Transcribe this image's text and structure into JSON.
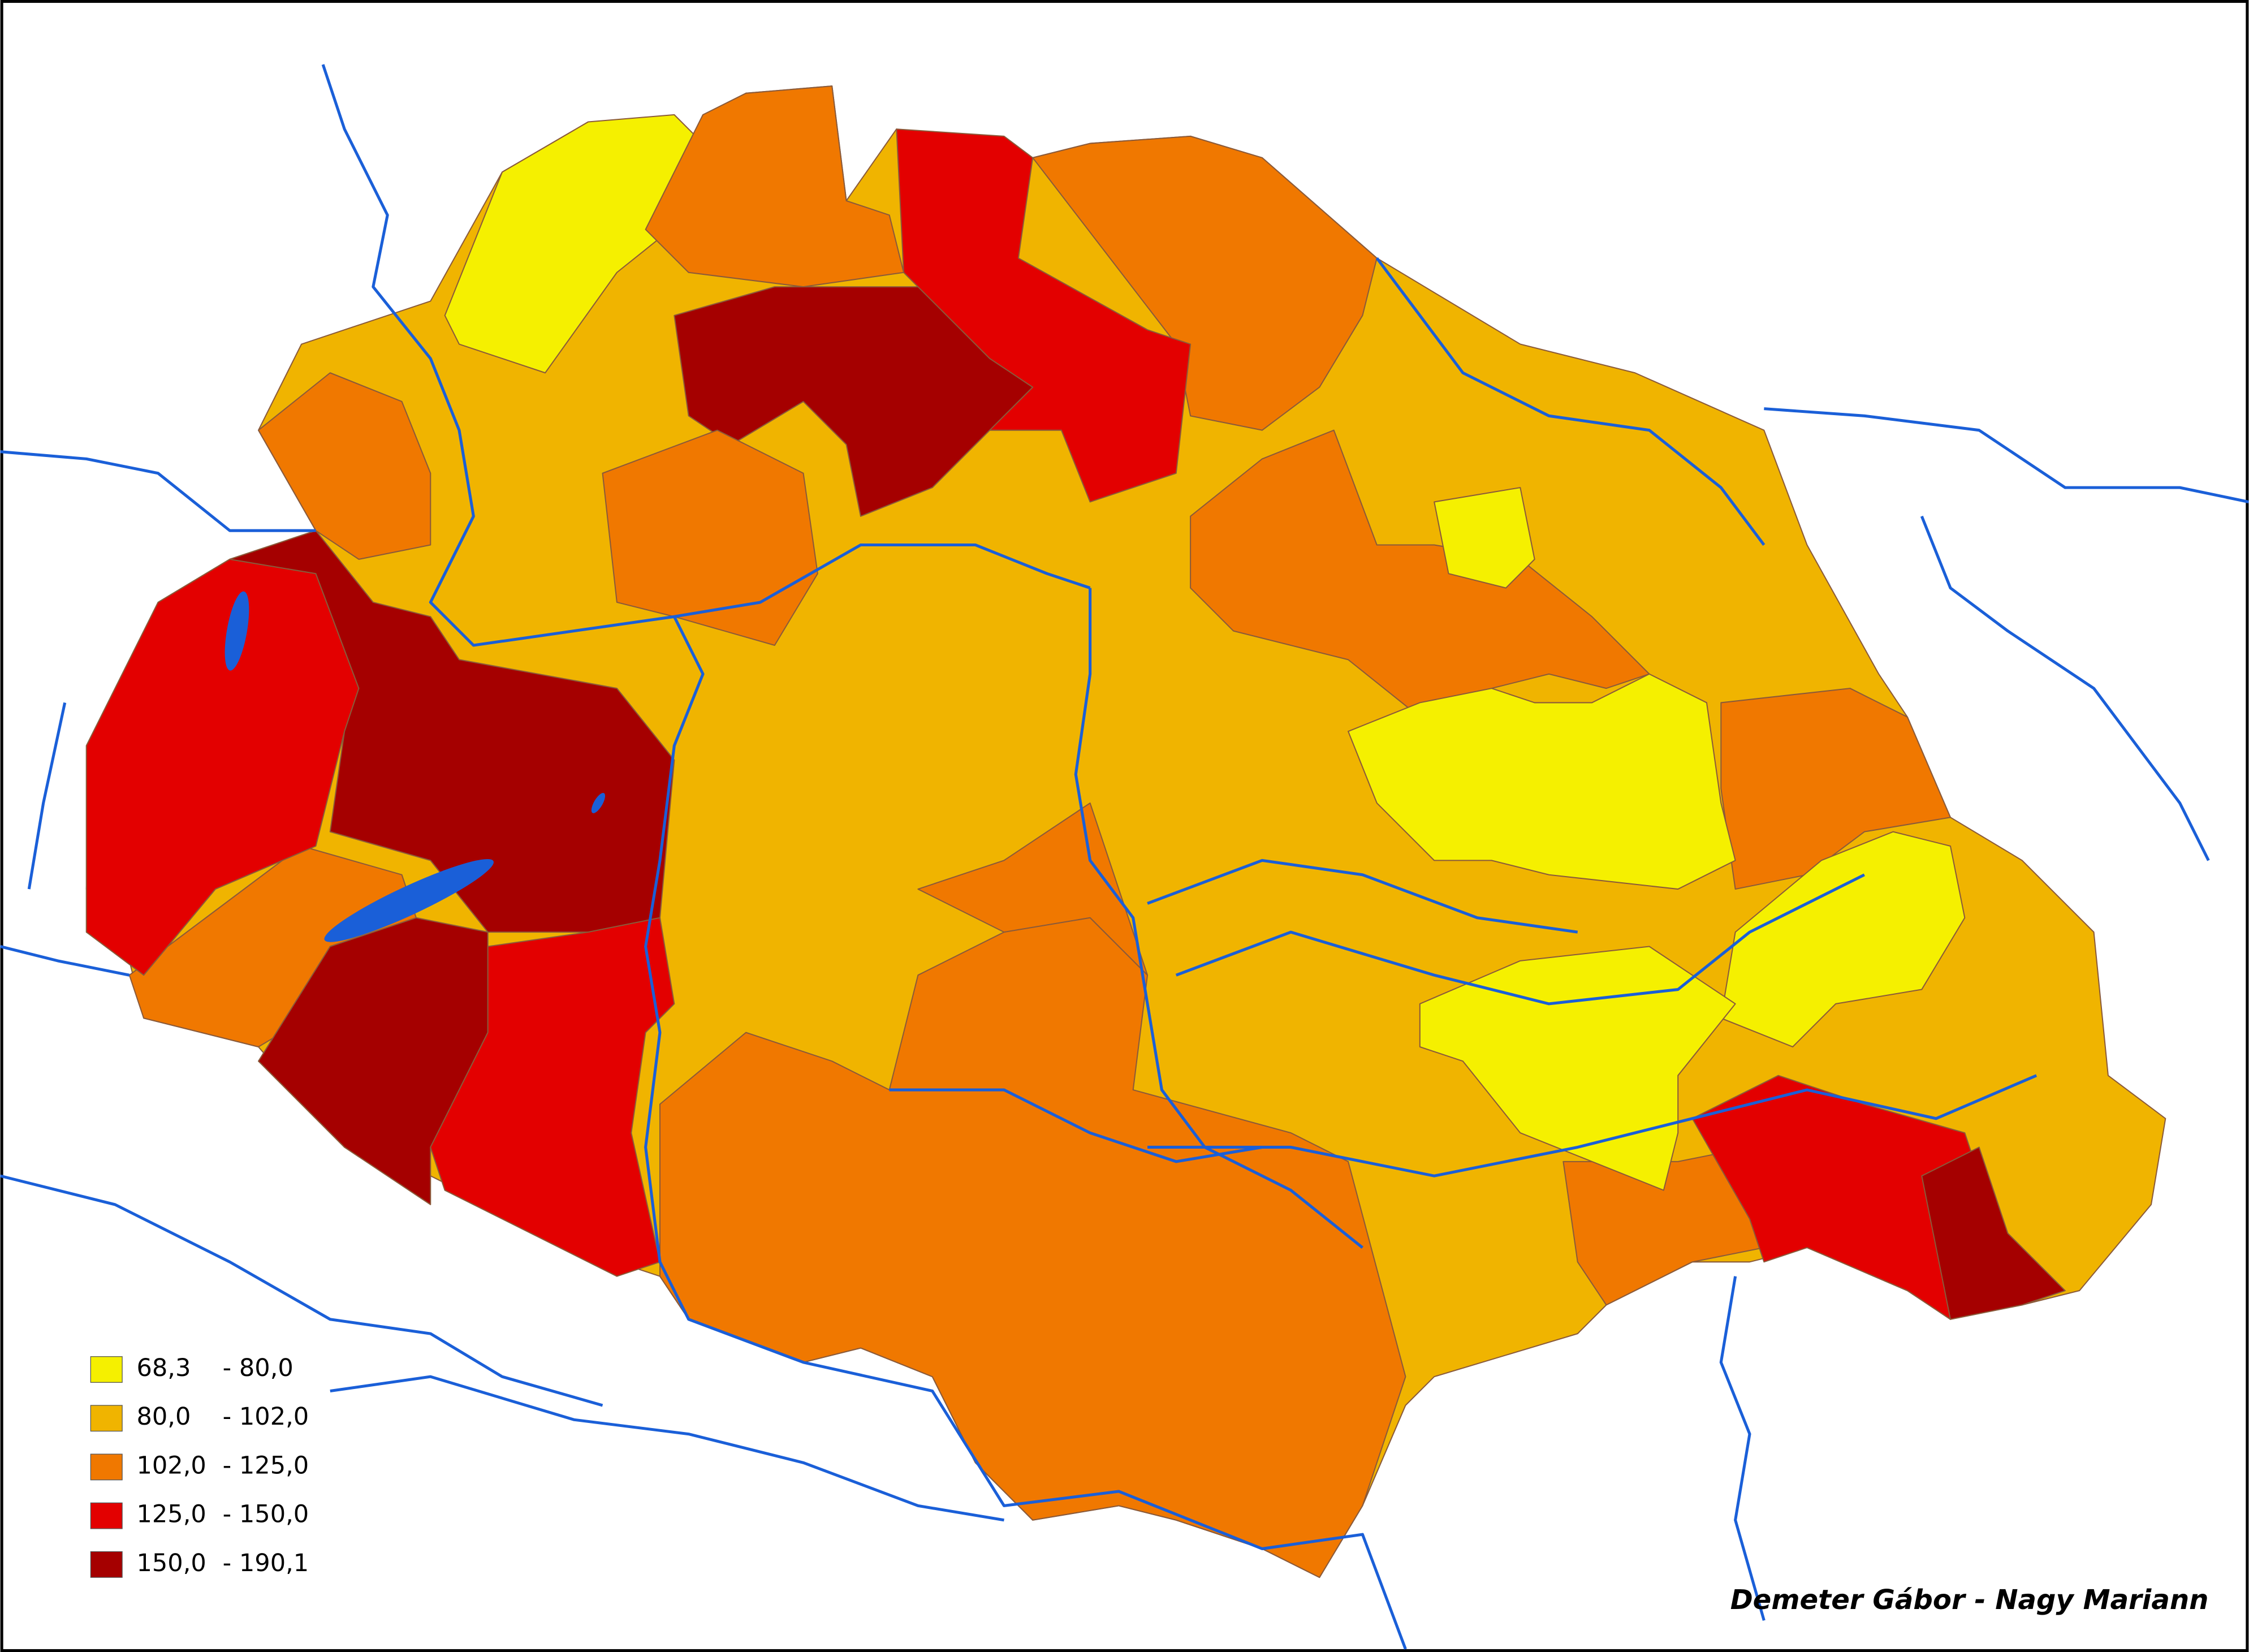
{
  "legend": {
    "items": [
      {
        "from": "68,3",
        "to": "- 80,0",
        "color": "#f5f000"
      },
      {
        "from": "80,0",
        "to": "- 102,0",
        "color": "#f0b400"
      },
      {
        "from": "102,0",
        "to": "- 125,0",
        "color": "#f07800"
      },
      {
        "from": "125,0",
        "to": "- 150,0",
        "color": "#e30000"
      },
      {
        "from": "150,0",
        "to": "- 190,1",
        "color": "#a50000"
      }
    ]
  },
  "credit": "Demeter Gábor - Nagy Mariann"
}
